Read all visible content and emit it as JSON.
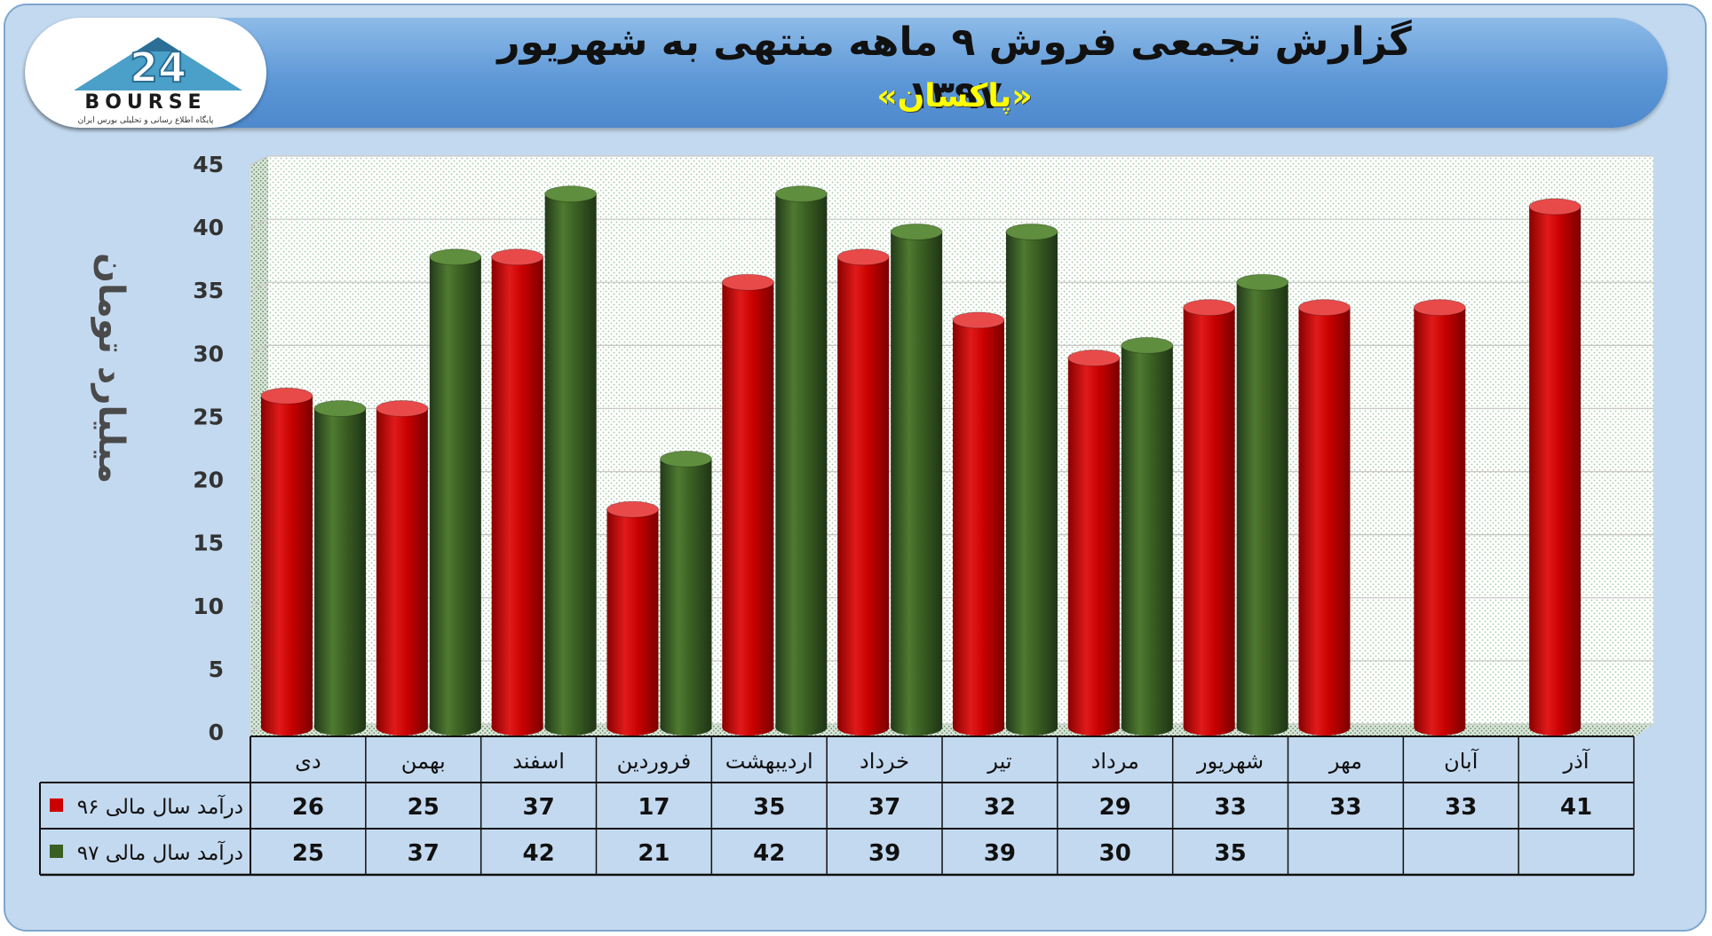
{
  "header": {
    "title": "گزارش تجمعی فروش ۹ ماهه منتهی به شهریور ۱۳۹۷",
    "subtitle": "«پاکسان»"
  },
  "logo": {
    "brand_text": "BOURSE",
    "tagline": "پایگاه اطلاع رسانی و تحلیلی بورس ایران"
  },
  "colors": {
    "series_96": "#cc0000",
    "series_97": "#3a5f22",
    "frame_bg": "#c3d9ef",
    "banner": "#5b96d6"
  },
  "chart_data": {
    "type": "bar",
    "ylabel": "میلیارد تومان",
    "ylim": [
      0,
      45
    ],
    "yticks": [
      0,
      5,
      10,
      15,
      20,
      25,
      30,
      35,
      40,
      45
    ],
    "grid": true,
    "categories": [
      "دی",
      "بهمن",
      "اسفند",
      "فروردین",
      "اردیبهشت",
      "خرداد",
      "تیر",
      "مرداد",
      "شهریور",
      "مهر",
      "آبان",
      "آذر"
    ],
    "series": [
      {
        "name": "درآمد سال مالی ۹۶",
        "values": [
          26,
          25,
          37,
          17,
          35,
          37,
          32,
          29,
          33,
          33,
          33,
          41
        ]
      },
      {
        "name": "درآمد سال مالی ۹۷",
        "values": [
          25,
          37,
          42,
          21,
          42,
          39,
          39,
          30,
          35,
          null,
          null,
          null
        ]
      }
    ]
  }
}
